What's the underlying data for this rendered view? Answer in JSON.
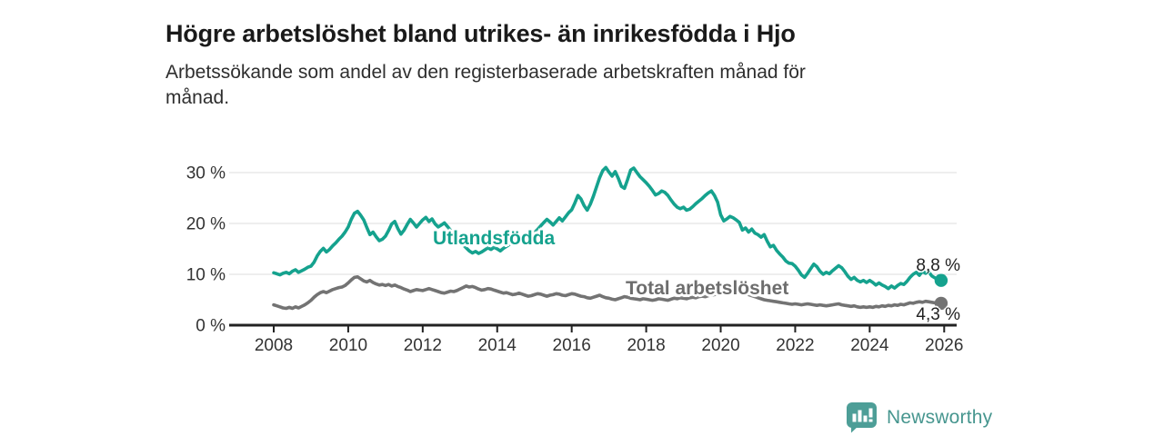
{
  "header": {
    "title": "Högre arbetslöshet bland utrikes- än inrikesfödda i Hjo",
    "subtitle": "Arbetssökande som andel av den registerbaserade arbetskraften månad för månad.",
    "subtitle_lines": [
      "Arbetssökande som andel av den registerbaserade arbetskraften månad för",
      "månad."
    ]
  },
  "colors": {
    "accent_teal": "#15a28e",
    "line_gray": "#737373",
    "label_gray": "#6d6d6d",
    "grid": "#dcdcdc",
    "axis": "#222222",
    "text_dark": "#1a1a1a",
    "text_body": "#2e2e2e",
    "brand_teal": "#47968f",
    "logo_teal": "#4d9e97"
  },
  "footer": {
    "brand": "Newsworthy",
    "logo_icon": "newsworthy-speech-bubble-bar-chart-icon"
  },
  "chart_data": {
    "type": "line",
    "title": "Högre arbetslöshet bland utrikes- än inrikesfödda i Hjo",
    "subtitle": "Arbetssökande som andel av den registerbaserade arbetskraften månad för månad.",
    "x_unit": "year",
    "y_unit": "percent",
    "x_start_year": 2008,
    "x_step_months": 1,
    "xlim": [
      2006.8,
      2026.3
    ],
    "ylim": [
      0,
      33
    ],
    "grid": "horizontal",
    "legend_position": "inline-labels",
    "x_ticks": [
      2008,
      2010,
      2012,
      2014,
      2016,
      2018,
      2020,
      2022,
      2024,
      2026
    ],
    "x_tick_labels": [
      "2008",
      "2010",
      "2012",
      "2014",
      "2016",
      "2018",
      "2020",
      "2022",
      "2024",
      "2026"
    ],
    "y_ticks": [
      0,
      10,
      20,
      30
    ],
    "y_tick_labels": [
      "0 %",
      "10 %",
      "20 %",
      "30 %"
    ],
    "series": [
      {
        "id": "utlandsfodda",
        "name": "Utlandsfödda",
        "color": "#15a28e",
        "end_label": "8,8 %",
        "end_value": 8.8,
        "values": [
          10.3,
          10.1,
          9.9,
          10.2,
          10.4,
          10.1,
          10.6,
          10.9,
          10.4,
          10.7,
          11.0,
          11.4,
          11.6,
          12.4,
          13.6,
          14.5,
          15.1,
          14.4,
          14.9,
          15.6,
          16.2,
          16.9,
          17.5,
          18.3,
          19.3,
          20.8,
          22.0,
          22.4,
          21.6,
          20.7,
          19.2,
          17.8,
          18.3,
          17.4,
          16.6,
          16.9,
          17.5,
          18.6,
          19.9,
          20.4,
          19.0,
          17.9,
          18.7,
          19.8,
          20.8,
          20.1,
          19.3,
          20.0,
          20.7,
          21.2,
          20.4,
          20.9,
          19.9,
          19.3,
          19.7,
          20.1,
          19.4,
          18.6,
          17.8,
          17.0,
          16.4,
          15.8,
          15.2,
          14.6,
          14.2,
          14.5,
          14.1,
          14.4,
          14.8,
          15.2,
          14.9,
          15.3,
          15.0,
          14.6,
          15.1,
          15.5,
          15.9,
          16.3,
          16.0,
          16.5,
          17.0,
          17.4,
          17.1,
          17.6,
          18.2,
          18.8,
          19.5,
          20.2,
          20.8,
          20.3,
          19.7,
          20.4,
          21.1,
          20.5,
          21.3,
          22.1,
          22.7,
          24.0,
          25.5,
          24.8,
          23.5,
          22.6,
          23.8,
          25.4,
          27.2,
          29.0,
          30.4,
          31.0,
          30.1,
          29.3,
          30.2,
          28.9,
          27.3,
          26.9,
          28.6,
          30.5,
          30.9,
          30.0,
          29.2,
          28.6,
          28.0,
          27.3,
          26.5,
          25.6,
          25.9,
          26.4,
          26.1,
          25.5,
          24.6,
          23.8,
          23.2,
          22.9,
          23.2,
          22.6,
          22.8,
          23.3,
          23.9,
          24.4,
          24.9,
          25.5,
          26.0,
          26.4,
          25.5,
          24.2,
          21.7,
          20.5,
          20.9,
          21.4,
          21.1,
          20.7,
          20.2,
          18.7,
          19.1,
          18.3,
          18.9,
          18.1,
          17.8,
          17.3,
          17.8,
          16.5,
          15.4,
          15.7,
          14.7,
          14.0,
          13.4,
          12.6,
          12.2,
          12.1,
          11.6,
          10.8,
          9.9,
          9.4,
          10.2,
          11.1,
          12.0,
          11.5,
          10.6,
          10.0,
          10.4,
          10.1,
          10.7,
          11.2,
          11.7,
          11.3,
          10.5,
          9.6,
          9.0,
          9.4,
          8.8,
          8.5,
          8.8,
          8.4,
          8.8,
          8.4,
          7.9,
          8.3,
          7.9,
          7.6,
          7.2,
          7.7,
          7.3,
          7.8,
          8.2,
          8.0,
          8.6,
          9.4,
          10.0,
          10.4,
          9.8,
          10.6,
          10.2,
          10.5,
          9.7,
          9.3,
          9.0,
          8.8
        ]
      },
      {
        "id": "total-arbetsloshet",
        "name": "Total arbetslöshet",
        "color": "#737373",
        "end_label": "4,3 %",
        "end_value": 4.3,
        "values": [
          4.0,
          3.8,
          3.6,
          3.4,
          3.3,
          3.5,
          3.3,
          3.6,
          3.4,
          3.7,
          4.0,
          4.4,
          4.9,
          5.5,
          6.0,
          6.4,
          6.6,
          6.4,
          6.7,
          7.0,
          7.2,
          7.4,
          7.5,
          7.8,
          8.3,
          8.9,
          9.4,
          9.5,
          9.1,
          8.7,
          8.5,
          8.8,
          8.4,
          8.1,
          7.9,
          8.0,
          7.8,
          8.0,
          7.7,
          7.9,
          7.6,
          7.4,
          7.1,
          6.9,
          6.6,
          6.8,
          7.0,
          6.9,
          6.8,
          7.0,
          7.2,
          7.0,
          6.8,
          6.6,
          6.4,
          6.3,
          6.5,
          6.7,
          6.6,
          6.8,
          7.1,
          7.4,
          7.7,
          7.5,
          7.6,
          7.4,
          7.1,
          6.9,
          7.0,
          7.2,
          7.1,
          6.9,
          6.7,
          6.5,
          6.3,
          6.4,
          6.2,
          6.0,
          6.1,
          6.3,
          6.1,
          5.9,
          5.7,
          5.8,
          6.0,
          6.2,
          6.1,
          5.9,
          5.7,
          5.9,
          6.0,
          6.2,
          6.1,
          5.9,
          5.8,
          6.0,
          6.2,
          6.1,
          5.9,
          5.7,
          5.6,
          5.4,
          5.3,
          5.5,
          5.7,
          5.9,
          5.6,
          5.4,
          5.3,
          5.1,
          5.0,
          5.2,
          5.4,
          5.6,
          5.5,
          5.3,
          5.2,
          5.1,
          5.0,
          5.2,
          5.1,
          5.0,
          4.9,
          5.0,
          5.2,
          5.1,
          5.0,
          4.9,
          5.1,
          5.3,
          5.2,
          5.4,
          5.3,
          5.2,
          5.4,
          5.5,
          5.4,
          5.6,
          5.7,
          5.6,
          5.8,
          5.9,
          6.0,
          6.2,
          6.4,
          6.6,
          6.9,
          7.1,
          7.0,
          6.8,
          6.6,
          6.4,
          6.2,
          6.0,
          5.8,
          5.6,
          5.4,
          5.2,
          5.0,
          4.9,
          4.8,
          4.7,
          4.6,
          4.5,
          4.4,
          4.3,
          4.2,
          4.1,
          4.2,
          4.1,
          4.0,
          4.1,
          4.2,
          4.1,
          4.0,
          3.9,
          4.0,
          3.9,
          3.8,
          3.9,
          4.0,
          4.1,
          4.2,
          4.0,
          3.9,
          3.8,
          3.7,
          3.8,
          3.6,
          3.5,
          3.6,
          3.5,
          3.6,
          3.5,
          3.7,
          3.6,
          3.8,
          3.7,
          3.9,
          3.8,
          4.0,
          3.9,
          4.1,
          4.0,
          4.2,
          4.4,
          4.3,
          4.5,
          4.6,
          4.5,
          4.7,
          4.6,
          4.5,
          4.4,
          4.4,
          4.3
        ]
      }
    ]
  }
}
